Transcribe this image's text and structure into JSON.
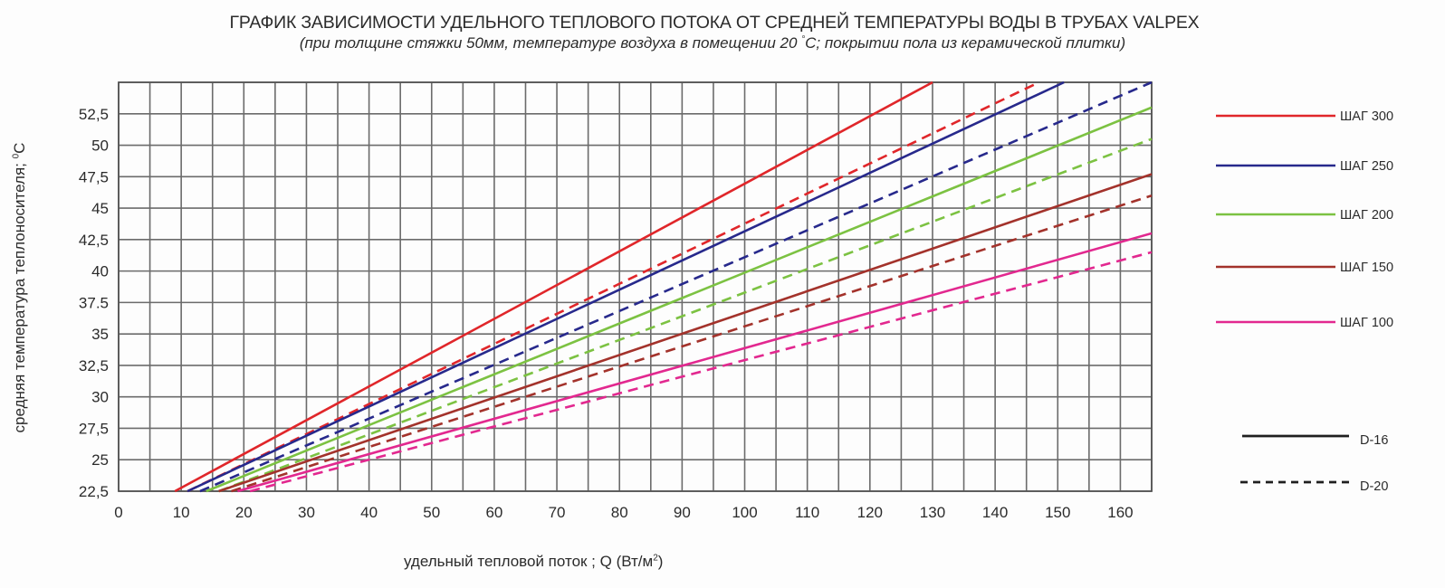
{
  "chart_data": {
    "type": "line",
    "title": "ГРАФИК ЗАВИСИМОСТИ УДЕЛЬНОГО ТЕПЛОВОГО ПОТОКА ОТ СРЕДНЕЙ ТЕМПЕРАТУРЫ ВОДЫ В ТРУБАХ VALPEX",
    "subtitle_parts": [
      "(при толщине стяжки 50мм, температуре воздуха в помещении 20 ",
      "°",
      "С; покрытии пола из керамической плитки)"
    ],
    "xlabel_parts": [
      "удельный тепловой поток ; Q (Вт/м",
      "2",
      ")"
    ],
    "ylabel_parts": [
      "средняя температура теплоносителя; ",
      "0",
      "С"
    ],
    "xlim": [
      0,
      165
    ],
    "ylim": [
      22.5,
      55
    ],
    "x_grid_step": 5,
    "y_grid_step": 2.5,
    "grid": true,
    "x_ticks": [
      0,
      10,
      20,
      30,
      40,
      50,
      60,
      70,
      80,
      90,
      100,
      110,
      120,
      130,
      140,
      150,
      160
    ],
    "x_tick_labels": [
      "0",
      "10",
      "20",
      "30",
      "40",
      "50",
      "60",
      "70",
      "80",
      "90",
      "100",
      "110",
      "120",
      "130",
      "140",
      "150",
      "160"
    ],
    "y_ticks": [
      22.5,
      25,
      27.5,
      30,
      32.5,
      35,
      37.5,
      40,
      42.5,
      45,
      47.5,
      50,
      52.5
    ],
    "y_tick_labels": [
      "22,5",
      "25",
      "27,5",
      "30",
      "32,5",
      "35",
      "37.5",
      "40",
      "42,5",
      "45",
      "47,5",
      "50",
      "52,5"
    ],
    "legend_position": "right",
    "series": [
      {
        "name": "ШАГ 300 D-16",
        "step": "ШАГ 300",
        "pipe": "D-16",
        "color": "#e0262a",
        "dash": false,
        "x": [
          9,
          130
        ],
        "y": [
          22.5,
          55
        ]
      },
      {
        "name": "ШАГ 300 D-20",
        "step": "ШАГ 300",
        "pipe": "D-20",
        "color": "#e0262a",
        "dash": true,
        "x": [
          11,
          147
        ],
        "y": [
          22.5,
          55
        ]
      },
      {
        "name": "ШАГ 250 D-16",
        "step": "ШАГ 250",
        "pipe": "D-16",
        "color": "#27298c",
        "dash": false,
        "x": [
          11,
          151
        ],
        "y": [
          22.5,
          55
        ]
      },
      {
        "name": "ШАГ 250 D-20",
        "step": "ШАГ 250",
        "pipe": "D-20",
        "color": "#27298c",
        "dash": true,
        "x": [
          13,
          165
        ],
        "y": [
          22.5,
          55
        ]
      },
      {
        "name": "ШАГ 200 D-16",
        "step": "ШАГ 200",
        "pipe": "D-16",
        "color": "#7cc242",
        "dash": false,
        "x": [
          14,
          165
        ],
        "y": [
          22.5,
          53
        ]
      },
      {
        "name": "ШАГ 200 D-20",
        "step": "ШАГ 200",
        "pipe": "D-20",
        "color": "#7cc242",
        "dash": true,
        "x": [
          16,
          165
        ],
        "y": [
          22.5,
          50.5
        ]
      },
      {
        "name": "ШАГ 150 D-16",
        "step": "ШАГ 150",
        "pipe": "D-16",
        "color": "#a3322b",
        "dash": false,
        "x": [
          16,
          165
        ],
        "y": [
          22.5,
          47.7
        ]
      },
      {
        "name": "ШАГ 150 D-20",
        "step": "ШАГ 150",
        "pipe": "D-20",
        "color": "#a3322b",
        "dash": true,
        "x": [
          18,
          165
        ],
        "y": [
          22.5,
          46
        ]
      },
      {
        "name": "ШАГ 100 D-16",
        "step": "ШАГ 100",
        "pipe": "D-16",
        "color": "#e2288f",
        "dash": false,
        "x": [
          19,
          165
        ],
        "y": [
          22.5,
          43
        ]
      },
      {
        "name": "ШАГ 100 D-20",
        "step": "ШАГ 100",
        "pipe": "D-20",
        "color": "#e2288f",
        "dash": true,
        "x": [
          21,
          165
        ],
        "y": [
          22.5,
          41.5
        ]
      }
    ],
    "legend": {
      "colors": [
        {
          "label": "ШАГ 300",
          "color": "#e0262a"
        },
        {
          "label": "ШАГ 250",
          "color": "#27298c"
        },
        {
          "label": "ШАГ 200",
          "color": "#7cc242"
        },
        {
          "label": "ШАГ 150",
          "color": "#a3322b"
        },
        {
          "label": "ШАГ 100",
          "color": "#e2288f"
        }
      ],
      "styles": [
        {
          "label": "D-16",
          "dash": false,
          "color": "#1f1f1f"
        },
        {
          "label": "D-20",
          "dash": true,
          "color": "#1f1f1f"
        }
      ]
    }
  }
}
